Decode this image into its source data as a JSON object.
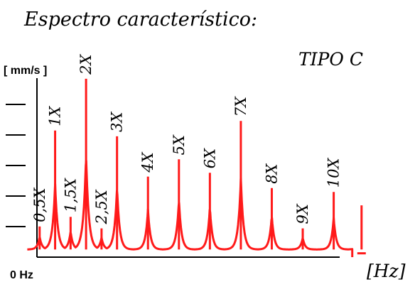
{
  "chart_data": {
    "type": "line",
    "title": "Espectro característico:",
    "subtitle": "TIPO C",
    "ylabel": "[ mm/s ]",
    "xlabel": "[Hz]",
    "x_origin_label": "0 Hz",
    "ylim": [
      0,
      10
    ],
    "ytick_count": 5,
    "xlim": [
      0,
      11.8
    ],
    "color": "#ff1a1a",
    "baseline": 0.4,
    "peaks": [
      {
        "label": "0,5X",
        "order": 0.5,
        "value": 1.6
      },
      {
        "label": "1X",
        "order": 1.0,
        "value": 6.6
      },
      {
        "label": "1,5X",
        "order": 1.5,
        "value": 2.1
      },
      {
        "label": "2X",
        "order": 2.0,
        "value": 9.3
      },
      {
        "label": "2,5X",
        "order": 2.5,
        "value": 1.5
      },
      {
        "label": "3X",
        "order": 3.0,
        "value": 6.3
      },
      {
        "label": "4X",
        "order": 4.0,
        "value": 4.2
      },
      {
        "label": "5X",
        "order": 5.0,
        "value": 5.1
      },
      {
        "label": "6X",
        "order": 6.0,
        "value": 4.4
      },
      {
        "label": "7X",
        "order": 7.0,
        "value": 7.1
      },
      {
        "label": "8X",
        "order": 8.0,
        "value": 3.6
      },
      {
        "label": "9X",
        "order": 9.0,
        "value": 1.5
      },
      {
        "label": "10X",
        "order": 10.0,
        "value": 3.4
      }
    ],
    "extra_peak": {
      "order": 10.9,
      "value": 2.7
    }
  }
}
